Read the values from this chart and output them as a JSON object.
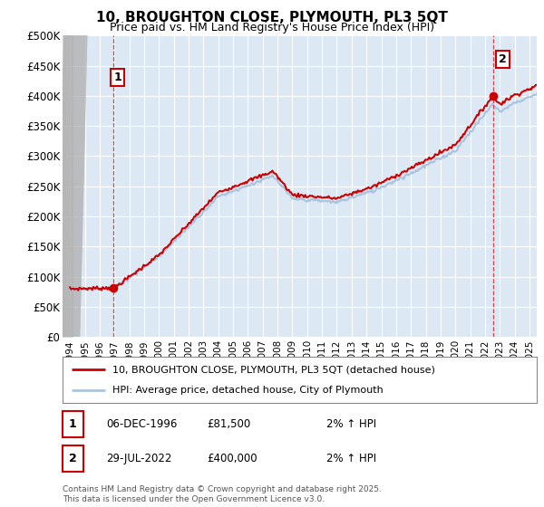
{
  "title": "10, BROUGHTON CLOSE, PLYMOUTH, PL3 5QT",
  "subtitle": "Price paid vs. HM Land Registry's House Price Index (HPI)",
  "ylim": [
    0,
    500000
  ],
  "yticks": [
    0,
    50000,
    100000,
    150000,
    200000,
    250000,
    300000,
    350000,
    400000,
    450000,
    500000
  ],
  "ytick_labels": [
    "£0",
    "£50K",
    "£100K",
    "£150K",
    "£200K",
    "£250K",
    "£300K",
    "£350K",
    "£400K",
    "£450K",
    "£500K"
  ],
  "xlim_start": 1993.5,
  "xlim_end": 2025.5,
  "background_color": "#ffffff",
  "plot_bg_color": "#dce9f5",
  "grid_color": "#ffffff",
  "marker1_x": 1996.92,
  "marker1_y": 81500,
  "marker2_x": 2022.57,
  "marker2_y": 400000,
  "red_color": "#cc0000",
  "blue_color": "#aac4e0",
  "legend1_text": "10, BROUGHTON CLOSE, PLYMOUTH, PL3 5QT (detached house)",
  "legend2_text": "HPI: Average price, detached house, City of Plymouth",
  "table_row1": [
    "1",
    "06-DEC-1996",
    "£81,500",
    "2% ↑ HPI"
  ],
  "table_row2": [
    "2",
    "29-JUL-2022",
    "£400,000",
    "2% ↑ HPI"
  ],
  "footer": "Contains HM Land Registry data © Crown copyright and database right 2025.\nThis data is licensed under the Open Government Licence v3.0.",
  "title_fontsize": 11,
  "subtitle_fontsize": 9
}
